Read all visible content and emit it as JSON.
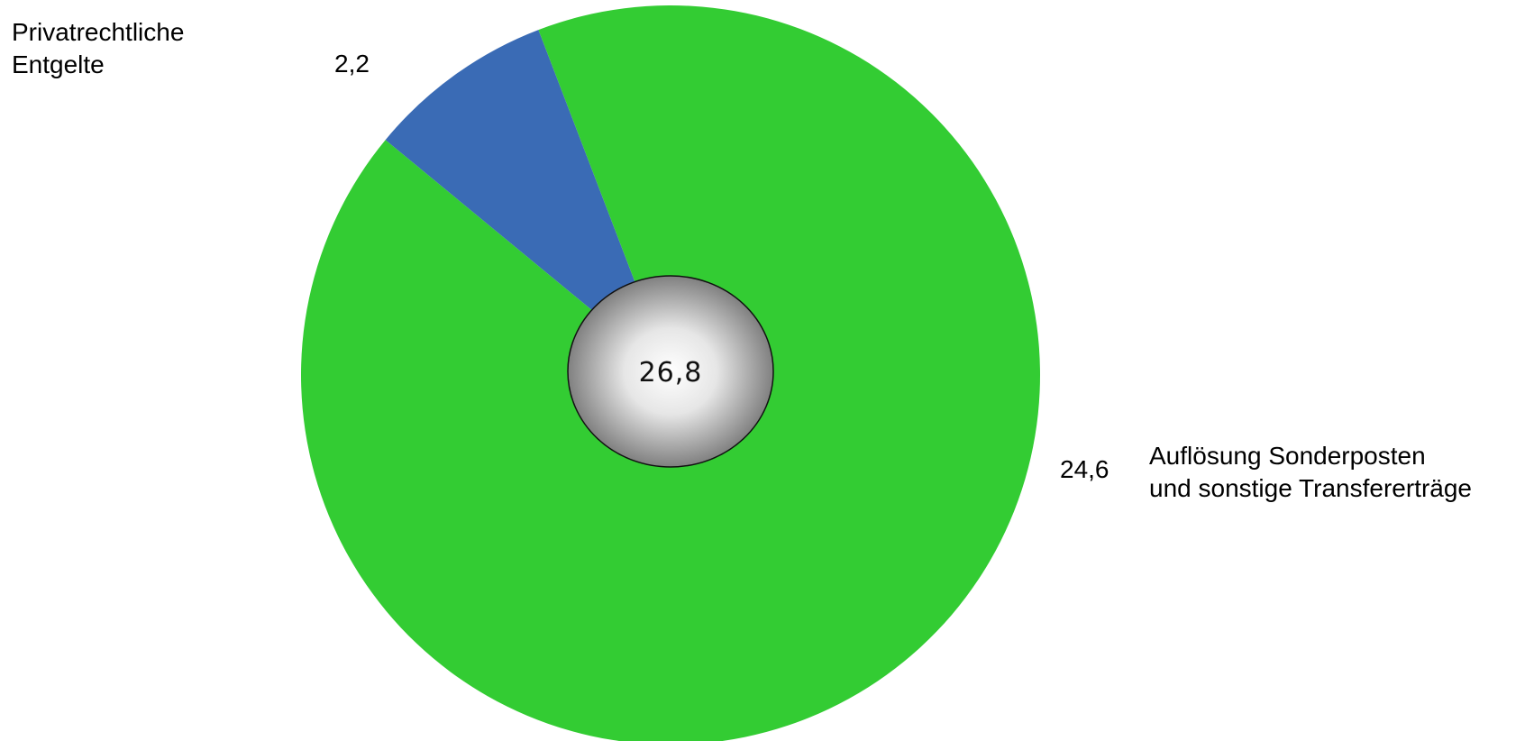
{
  "chart_data": {
    "type": "pie",
    "total": "26,8",
    "slices": [
      {
        "name_lines": [
          "Privatrechtliche",
          "Entgelte"
        ],
        "value": 2.2,
        "value_label": "2,2",
        "color": "#3a6bb5"
      },
      {
        "name_lines": [
          "Auflösung Sonderposten",
          "und sonstige Transfererträge"
        ],
        "value": 24.6,
        "value_label": "24,6",
        "color": "#33cc33"
      }
    ]
  }
}
